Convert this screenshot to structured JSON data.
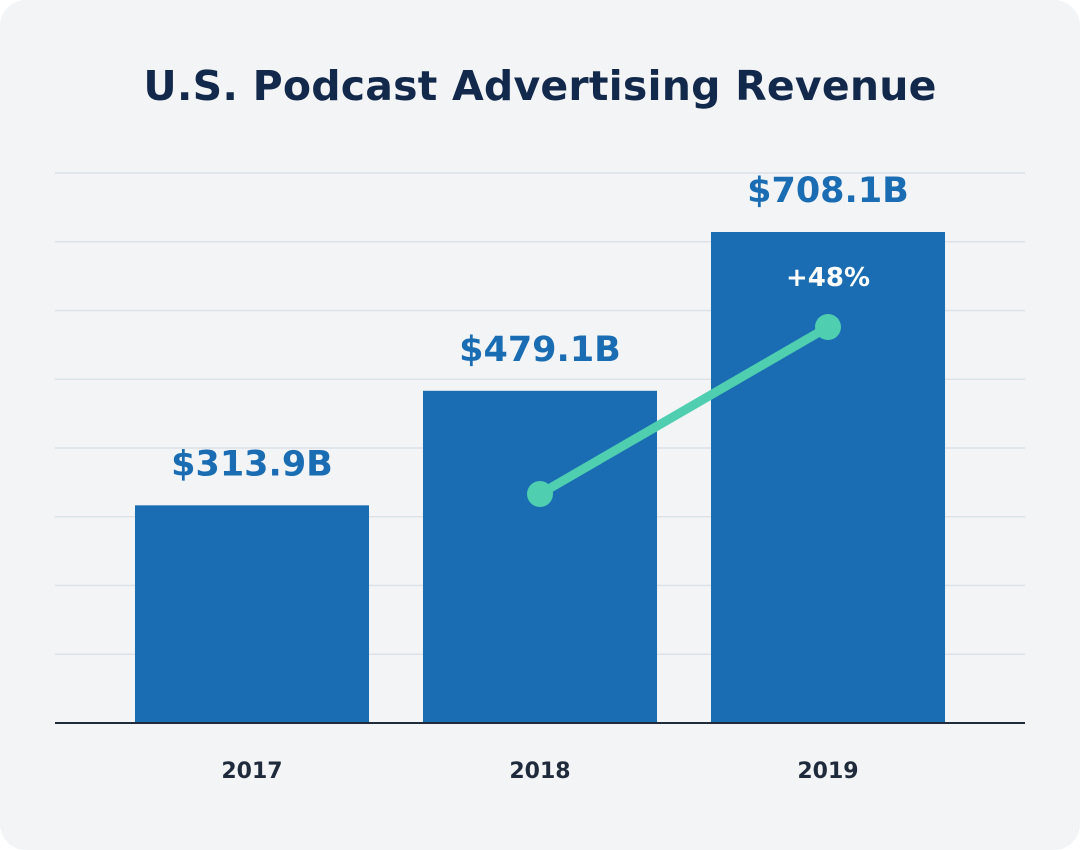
{
  "chart_data": {
    "type": "bar",
    "title": "U.S. Podcast Advertising Revenue",
    "xlabel": "",
    "ylabel": "",
    "categories": [
      "2017",
      "2018",
      "2019"
    ],
    "values": [
      313.9,
      479.1,
      708.1
    ],
    "value_labels": [
      "$313.9B",
      "$479.1B",
      "$708.1B"
    ],
    "ylim": [
      0,
      800
    ],
    "grid": true,
    "legend": "none",
    "annotations": [
      {
        "type": "growth-line",
        "text": "+48%",
        "from": "2018",
        "to": "2019"
      }
    ]
  },
  "colors": {
    "background": "#f2f4f6",
    "title": "#13294b",
    "bar": "#1b6db3",
    "value_label": "#1b6db3",
    "growth_line": "#4fceb0",
    "growth_label": "#ffffff",
    "gridline": "#dde2e8",
    "axis": "#1f2a3a"
  }
}
